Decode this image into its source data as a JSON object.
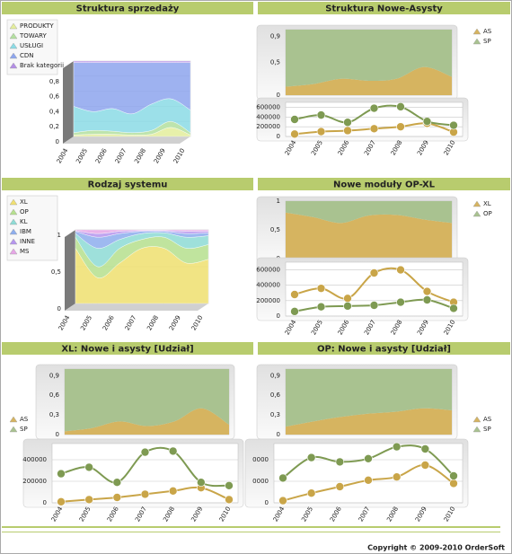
{
  "chart_data": [
    {
      "type": "area3d",
      "title": "Struktura sprzedaży",
      "categories": [
        "2004",
        "2005",
        "2006",
        "2007",
        "2008",
        "2009",
        "2010"
      ],
      "ylim": [
        0,
        1
      ],
      "yticks": [
        0,
        {
          "value": 0.2,
          "label": "0,2"
        },
        {
          "value": 0.4,
          "label": "0,4"
        },
        {
          "value": 0.6,
          "label": "0,6"
        },
        {
          "value": 0.8,
          "label": "0,8"
        }
      ],
      "legend": "left",
      "series": [
        {
          "name": "PRODUKTY",
          "color": "#e4ee9c",
          "values": [
            0.02,
            0.03,
            0.03,
            0.02,
            0.03,
            0.12,
            0.02
          ]
        },
        {
          "name": "TOWARY",
          "color": "#b4e0a0",
          "values": [
            0.03,
            0.05,
            0.04,
            0.03,
            0.05,
            0.08,
            0.03
          ]
        },
        {
          "name": "USŁUGI",
          "color": "#8cdce6",
          "values": [
            0.35,
            0.25,
            0.3,
            0.25,
            0.35,
            0.3,
            0.3
          ]
        },
        {
          "name": "CDN",
          "color": "#8ea6ee",
          "values": [
            0.58,
            0.65,
            0.61,
            0.68,
            0.55,
            0.48,
            0.63
          ]
        },
        {
          "name": "Brak kategorii",
          "color": "#b48ee6",
          "values": [
            0.02,
            0.02,
            0.02,
            0.02,
            0.02,
            0.02,
            0.02
          ]
        }
      ]
    },
    {
      "type": "area",
      "title": "Struktura Nowe-Asysty",
      "ylim": [
        0,
        1
      ],
      "legend": "right",
      "yticks": [
        0,
        {
          "value": 0.5,
          "label": "0,5"
        },
        {
          "value": 0.9,
          "label": "0,9"
        }
      ],
      "series": [
        {
          "name": "AS",
          "color": "#d6b460",
          "values": [
            0.13,
            0.17,
            0.25,
            0.22,
            0.25,
            0.43,
            0.28
          ]
        },
        {
          "name": "SP",
          "color": "#a9c290",
          "values": [
            0.87,
            0.83,
            0.75,
            0.78,
            0.75,
            0.57,
            0.72
          ]
        }
      ]
    },
    {
      "type": "line",
      "categories": [
        "2004",
        "2005",
        "2006",
        "2007",
        "2008",
        "2009",
        "2010"
      ],
      "ylim": [
        0,
        700000
      ],
      "yticks": [
        0,
        200000,
        400000,
        600000
      ],
      "series": [
        {
          "color": "#c9a548",
          "values": [
            50000,
            100000,
            120000,
            160000,
            200000,
            270000,
            90000
          ]
        },
        {
          "color": "#7e9a52",
          "values": [
            350000,
            440000,
            290000,
            580000,
            610000,
            310000,
            230000
          ]
        }
      ]
    },
    {
      "type": "area3d",
      "title": "Rodzaj systemu",
      "categories": [
        "2004",
        "2005",
        "2006",
        "2007",
        "2008",
        "2009",
        "2010"
      ],
      "ylim": [
        0,
        1
      ],
      "yticks": [
        0,
        {
          "value": 0.5,
          "label": "0,5"
        },
        1
      ],
      "legend": "left",
      "series": [
        {
          "name": "XL",
          "color": "#f0e070",
          "values": [
            0.75,
            0.35,
            0.55,
            0.75,
            0.75,
            0.55,
            0.6
          ]
        },
        {
          "name": "OP",
          "color": "#b6e08e",
          "values": [
            0.15,
            0.15,
            0.2,
            0.12,
            0.15,
            0.2,
            0.2
          ]
        },
        {
          "name": "KL",
          "color": "#8edcd6",
          "values": [
            0.05,
            0.25,
            0.12,
            0.08,
            0.06,
            0.15,
            0.12
          ]
        },
        {
          "name": "IBM",
          "color": "#8eaeee",
          "values": [
            0.03,
            0.15,
            0.08,
            0.03,
            0.02,
            0.05,
            0.04
          ]
        },
        {
          "name": "INNE",
          "color": "#b696ee",
          "values": [
            0.01,
            0.05,
            0.03,
            0.01,
            0.01,
            0.03,
            0.02
          ]
        },
        {
          "name": "MS",
          "color": "#e6a6e6",
          "values": [
            0.01,
            0.05,
            0.02,
            0.01,
            0.01,
            0.02,
            0.02
          ]
        }
      ]
    },
    {
      "type": "area",
      "title": "Nowe moduły OP-XL",
      "ylim": [
        0,
        1
      ],
      "legend": "right",
      "yticks": [
        0,
        {
          "value": 0.5,
          "label": "0,5"
        },
        1
      ],
      "series": [
        {
          "name": "XL",
          "color": "#d6b460",
          "values": [
            0.8,
            0.72,
            0.62,
            0.75,
            0.76,
            0.68,
            0.62
          ]
        },
        {
          "name": "OP",
          "color": "#a9c290",
          "values": [
            0.2,
            0.28,
            0.38,
            0.25,
            0.24,
            0.32,
            0.38
          ]
        }
      ]
    },
    {
      "type": "line",
      "categories": [
        "2004",
        "2005",
        "2006",
        "2007",
        "2008",
        "2009",
        "2010"
      ],
      "ylim": [
        0,
        700000
      ],
      "yticks": [
        0,
        200000,
        400000,
        600000
      ],
      "series": [
        {
          "color": "#c9a548",
          "values": [
            280000,
            360000,
            230000,
            560000,
            600000,
            320000,
            180000
          ]
        },
        {
          "color": "#7e9a52",
          "values": [
            60000,
            120000,
            130000,
            140000,
            180000,
            210000,
            100000
          ]
        }
      ]
    },
    {
      "type": "area",
      "title": "XL: Nowe i asysty [Udział]",
      "ylim": [
        0,
        1
      ],
      "legend": "left",
      "yticks": [
        0,
        {
          "value": 0.3,
          "label": "0,3"
        },
        {
          "value": 0.6,
          "label": "0,6"
        },
        {
          "value": 0.9,
          "label": "0,9"
        }
      ],
      "series": [
        {
          "name": "AS",
          "color": "#d6b460",
          "values": [
            0.05,
            0.1,
            0.2,
            0.13,
            0.2,
            0.4,
            0.15
          ]
        },
        {
          "name": "SP",
          "color": "#a9c290",
          "values": [
            0.95,
            0.9,
            0.8,
            0.87,
            0.8,
            0.6,
            0.85
          ]
        }
      ]
    },
    {
      "type": "line",
      "categories": [
        "2004",
        "2005",
        "2006",
        "2007",
        "2008",
        "2009",
        "2010"
      ],
      "ylim": [
        0,
        550000
      ],
      "yticks": [
        0,
        200000,
        400000
      ],
      "series": [
        {
          "color": "#c9a548",
          "values": [
            10000,
            30000,
            50000,
            80000,
            110000,
            140000,
            30000
          ]
        },
        {
          "color": "#7e9a52",
          "values": [
            270000,
            330000,
            190000,
            470000,
            480000,
            190000,
            160000
          ]
        }
      ]
    },
    {
      "type": "area",
      "title": "OP: Nowe i asysty [Udział]",
      "ylim": [
        0,
        1
      ],
      "legend": "right",
      "yticks": [
        0,
        {
          "value": 0.3,
          "label": "0,3"
        },
        {
          "value": 0.6,
          "label": "0,6"
        },
        {
          "value": 0.9,
          "label": "0,9"
        }
      ],
      "series": [
        {
          "name": "AS",
          "color": "#d6b460",
          "values": [
            0.12,
            0.2,
            0.27,
            0.32,
            0.35,
            0.4,
            0.37
          ]
        },
        {
          "name": "SP",
          "color": "#a9c290",
          "values": [
            0.88,
            0.8,
            0.73,
            0.68,
            0.65,
            0.6,
            0.63
          ]
        }
      ]
    },
    {
      "type": "line",
      "categories": [
        "2004",
        "2005",
        "2006",
        "2007",
        "2008",
        "2009",
        "2010"
      ],
      "ylim": [
        0,
        550000
      ],
      "yticks": [
        0,
        {
          "value": 200000,
          "label": "0000"
        },
        {
          "value": 400000,
          "label": "0000"
        }
      ],
      "series": [
        {
          "color": "#c9a548",
          "values": [
            20000,
            90000,
            150000,
            210000,
            240000,
            350000,
            180000
          ]
        },
        {
          "color": "#7e9a52",
          "values": [
            230000,
            420000,
            380000,
            410000,
            520000,
            500000,
            250000
          ]
        }
      ]
    }
  ],
  "footer": "Copyright © 2009-2010 OrderSoft"
}
